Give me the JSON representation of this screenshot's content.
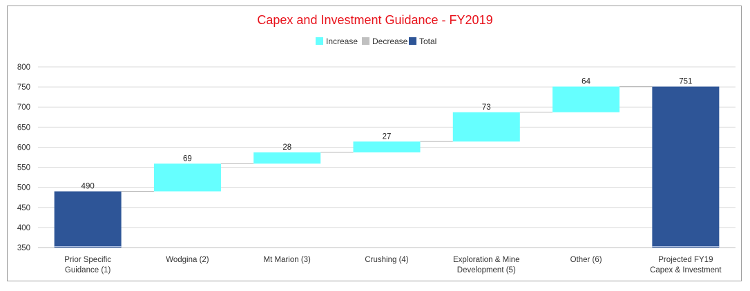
{
  "chart_data": {
    "type": "bar",
    "subtype": "waterfall",
    "title": "Capex and Investment Guidance - FY2019",
    "legend": [
      {
        "label": "Increase",
        "color": "#66FFFF"
      },
      {
        "label": "Decrease",
        "color": "#C0C0C0"
      },
      {
        "label": "Total",
        "color": "#2E5597"
      }
    ],
    "legend_position": "top-center",
    "categories": [
      [
        "Prior Specific",
        "Guidance (1)"
      ],
      [
        "Wodgina (2)"
      ],
      [
        "Mt Marion (3)"
      ],
      [
        "Crushing (4)"
      ],
      [
        "Exploration & Mine",
        "Development (5)"
      ],
      [
        "Other (6)"
      ],
      [
        "Projected FY19",
        "Capex & Investment"
      ]
    ],
    "values": [
      490,
      69,
      28,
      27,
      73,
      64,
      751
    ],
    "kinds": [
      "total",
      "increase",
      "increase",
      "increase",
      "increase",
      "increase",
      "total"
    ],
    "data_labels": [
      "490",
      "69",
      "28",
      "27",
      "73",
      "64",
      "751"
    ],
    "yticks": [
      "350",
      "400",
      "450",
      "500",
      "550",
      "600",
      "650",
      "700",
      "750",
      "800"
    ],
    "ylim": [
      350,
      800
    ],
    "grid": true,
    "colors": {
      "title": "#E8121B",
      "increase": "#66FFFF",
      "decrease": "#C0C0C0",
      "total": "#2E5597",
      "grid": "#D9D9D9",
      "connector": "#BBBBBB"
    }
  }
}
